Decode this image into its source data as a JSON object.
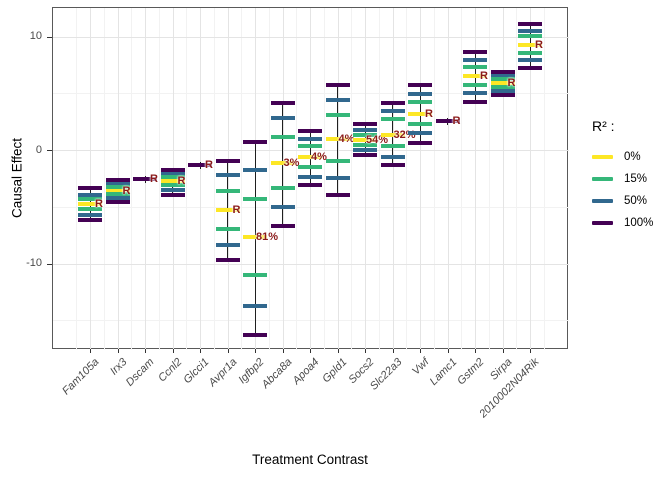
{
  "chart_data": {
    "type": "crossbar-interval",
    "title": "",
    "xlabel": "Treatment Contrast",
    "ylabel": "Causal Effect",
    "grid": true,
    "legend_position": "right",
    "annotation_color": "#8B1A1A",
    "y_axis": {
      "major_ticks": [
        {
          "label": "10",
          "value": 10
        },
        {
          "label": "0",
          "value": 0
        },
        {
          "label": "-10",
          "value": -10
        }
      ],
      "minor_gridlines": [
        5,
        -5,
        -15
      ],
      "range": [
        -17.5,
        12.6
      ]
    },
    "legend": {
      "title": "R² :",
      "items": [
        {
          "label": "0%",
          "r2": "0%",
          "color": "#FDE725"
        },
        {
          "label": "15%",
          "r2": "15%",
          "color": "#35B779"
        },
        {
          "label": "50%",
          "r2": "50%",
          "color": "#31688E"
        },
        {
          "label": "100%",
          "r2": "100%",
          "color": "#440154"
        }
      ]
    },
    "groups": [
      {
        "name": "Fam105a",
        "annotation": "R",
        "bars": [
          [
            "100%",
            -3.3
          ],
          [
            "50%",
            -3.85
          ],
          [
            "15%",
            -4.25
          ],
          [
            "0%",
            -4.65
          ],
          [
            "15%",
            -5.15
          ],
          [
            "50%",
            -5.6
          ],
          [
            "100%",
            -6.1
          ]
        ]
      },
      {
        "name": "Irx3",
        "annotation": "R",
        "bars": [
          [
            "100%",
            -2.55
          ],
          [
            "50%",
            -2.9
          ],
          [
            "15%",
            -3.2
          ],
          [
            "0%",
            -3.5
          ],
          [
            "15%",
            -3.8
          ],
          [
            "50%",
            -4.1
          ],
          [
            "100%",
            -4.45
          ]
        ]
      },
      {
        "name": "Dscam",
        "annotation": "R",
        "bars": [
          [
            "100%",
            -2.5
          ]
        ]
      },
      {
        "name": "Ccnl2",
        "annotation": "R",
        "bars": [
          [
            "100%",
            -1.7
          ],
          [
            "50%",
            -2.0
          ],
          [
            "15%",
            -2.3
          ],
          [
            "0%",
            -2.6
          ],
          [
            "15%",
            -3.0
          ],
          [
            "50%",
            -3.4
          ],
          [
            "100%",
            -3.85
          ]
        ]
      },
      {
        "name": "Glcci1",
        "annotation": "R",
        "bars": [
          [
            "100%",
            -1.2
          ]
        ]
      },
      {
        "name": "Avpr1a",
        "annotation": "R",
        "bars": [
          [
            "100%",
            -0.85
          ],
          [
            "50%",
            -2.1
          ],
          [
            "15%",
            -3.5
          ],
          [
            "0%",
            -5.2
          ],
          [
            "15%",
            -6.9
          ],
          [
            "50%",
            -8.3
          ],
          [
            "100%",
            -9.6
          ]
        ]
      },
      {
        "name": "Igfbp2",
        "annotation": "81%",
        "bars": [
          [
            "100%",
            0.8
          ],
          [
            "50%",
            -1.7
          ],
          [
            "15%",
            -4.2
          ],
          [
            "0%",
            -7.6
          ],
          [
            "15%",
            -10.9
          ],
          [
            "50%",
            -13.7
          ],
          [
            "100%",
            -16.2
          ]
        ]
      },
      {
        "name": "Abca8a",
        "annotation": "3%",
        "bars": [
          [
            "100%",
            4.2
          ],
          [
            "50%",
            2.9
          ],
          [
            "15%",
            1.2
          ],
          [
            "0%",
            -1.1
          ],
          [
            "15%",
            -3.3
          ],
          [
            "50%",
            -4.9
          ],
          [
            "100%",
            -6.6
          ]
        ]
      },
      {
        "name": "Apoa4",
        "annotation": "4%",
        "bars": [
          [
            "100%",
            1.8
          ],
          [
            "50%",
            1.1
          ],
          [
            "15%",
            0.45
          ],
          [
            "0%",
            -0.55
          ],
          [
            "15%",
            -1.45
          ],
          [
            "50%",
            -2.3
          ],
          [
            "100%",
            -3.0
          ]
        ]
      },
      {
        "name": "Gpld1",
        "annotation": "4%",
        "bars": [
          [
            "100%",
            5.8
          ],
          [
            "50%",
            4.5
          ],
          [
            "15%",
            3.2
          ],
          [
            "0%",
            1.05
          ],
          [
            "15%",
            -0.9
          ],
          [
            "50%",
            -2.4
          ],
          [
            "100%",
            -3.9
          ]
        ]
      },
      {
        "name": "Socs2",
        "annotation": "54%",
        "bars": [
          [
            "100%",
            2.4
          ],
          [
            "50%",
            1.85
          ],
          [
            "15%",
            1.4
          ],
          [
            "0%",
            1.0
          ],
          [
            "15%",
            0.5
          ],
          [
            "50%",
            0.1
          ],
          [
            "100%",
            -0.35
          ]
        ]
      },
      {
        "name": "Slc22a3",
        "annotation": "32%",
        "bars": [
          [
            "100%",
            4.2
          ],
          [
            "50%",
            3.5
          ],
          [
            "15%",
            2.8
          ],
          [
            "0%",
            1.4
          ],
          [
            "15%",
            0.4
          ],
          [
            "50%",
            -0.5
          ],
          [
            "100%",
            -1.25
          ]
        ]
      },
      {
        "name": "Vwf",
        "annotation": "R",
        "bars": [
          [
            "100%",
            5.8
          ],
          [
            "50%",
            5.0
          ],
          [
            "15%",
            4.3
          ],
          [
            "0%",
            3.3
          ],
          [
            "15%",
            2.4
          ],
          [
            "50%",
            1.6
          ],
          [
            "100%",
            0.7
          ]
        ]
      },
      {
        "name": "Lamc1",
        "annotation": "R",
        "bars": [
          [
            "100%",
            2.6
          ]
        ]
      },
      {
        "name": "Gstm2",
        "annotation": "R",
        "bars": [
          [
            "100%",
            8.7
          ],
          [
            "50%",
            8.0
          ],
          [
            "15%",
            7.4
          ],
          [
            "0%",
            6.6
          ],
          [
            "15%",
            5.8
          ],
          [
            "50%",
            5.1
          ],
          [
            "100%",
            4.3
          ]
        ]
      },
      {
        "name": "Sirpa",
        "annotation": "R",
        "bars": [
          [
            "100%",
            7.0
          ],
          [
            "50%",
            6.65
          ],
          [
            "15%",
            6.3
          ],
          [
            "0%",
            5.95
          ],
          [
            "15%",
            5.6
          ],
          [
            "50%",
            5.25
          ],
          [
            "100%",
            4.95
          ]
        ]
      },
      {
        "name": "2010002N04Rik",
        "annotation": "R",
        "bars": [
          [
            "100%",
            11.2
          ],
          [
            "50%",
            10.6
          ],
          [
            "15%",
            10.1
          ],
          [
            "0%",
            9.35
          ],
          [
            "15%",
            8.65
          ],
          [
            "50%",
            8.0
          ],
          [
            "100%",
            7.35
          ]
        ]
      }
    ]
  }
}
